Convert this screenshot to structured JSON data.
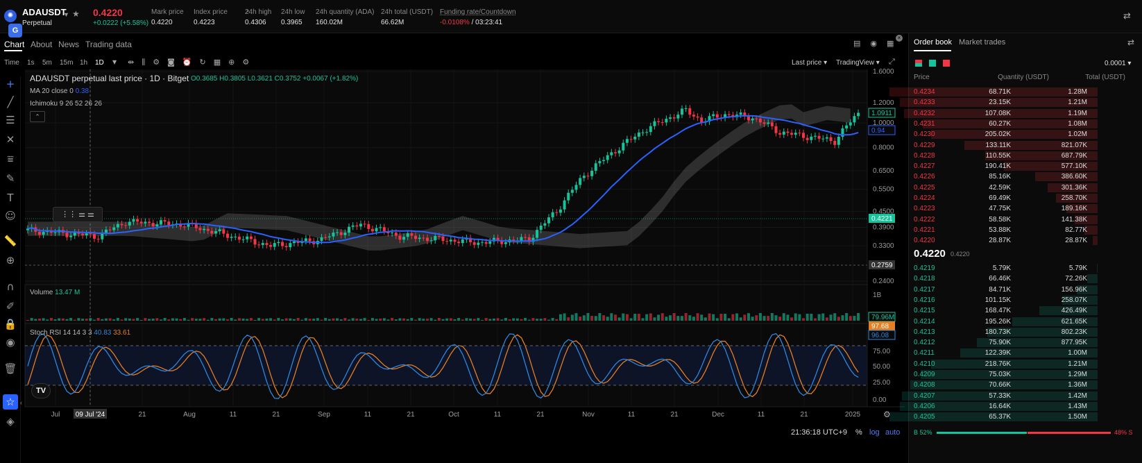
{
  "header": {
    "symbol": "ADAUSDT",
    "contract": "Perpetual",
    "last_price": "0.4220",
    "change": "+0.0222 (+5.58%)",
    "stats": [
      {
        "label": "Mark price",
        "value": "0.4220"
      },
      {
        "label": "Index price",
        "value": "0.4223"
      },
      {
        "label": "24h high",
        "value": "0.4306"
      },
      {
        "label": "24h low",
        "value": "0.3965"
      },
      {
        "label": "24h quantity (ADA)",
        "value": "160.02M"
      },
      {
        "label": "24h total (USDT)",
        "value": "66.62M"
      },
      {
        "label": "Funding rate/Countdown",
        "value": "-0.0108%",
        "value2": "/ 03:23:41"
      }
    ]
  },
  "chart_tabs": [
    "Chart",
    "About",
    "News",
    "Trading data"
  ],
  "timeframes": [
    "Time",
    "1s",
    "5m",
    "15m",
    "1h",
    "1D"
  ],
  "chart_controls": {
    "last_price": "Last price",
    "view": "TradingView"
  },
  "legend": {
    "title": "ADAUSDT perpetual last price · 1D · Bitget",
    "ohlc": "O0.3685  H0.3805  L0.3621  C0.3752  +0.0067 (+1.82%)",
    "ma": "MA 20 close 0",
    "ma_value": "0.38",
    "ichimoku": "Ichimoku 9 26 52 26 26",
    "volume": "Volume",
    "volume_value": "13.47 M",
    "stoch": "Stoch RSI 14 14 3 3",
    "stoch_k": "40.83",
    "stoch_d": "33.61"
  },
  "price_axis": {
    "ticks": [
      "1.6000",
      "1.2000",
      "1.0000",
      "0.8000",
      "0.6500",
      "0.5500",
      "0.4500",
      "0.3900",
      "0.3300",
      "0.2400"
    ],
    "tags": {
      "high": "1.0911",
      "ma": "0.94",
      "last": "0.4221",
      "low": "0.2759"
    }
  },
  "volume_axis": {
    "tick": "1B",
    "tag": "79.96M"
  },
  "stoch_axis": {
    "ticks": [
      "75.00",
      "50.00",
      "25.00",
      "0.00"
    ],
    "tag1": "97.68",
    "tag2": "96.08"
  },
  "time_axis": [
    "Jul",
    "09 Jul '24",
    "21",
    "Aug",
    "11",
    "21",
    "Sep",
    "11",
    "21",
    "Oct",
    "11",
    "21",
    "Nov",
    "11",
    "21",
    "Dec",
    "11",
    "21",
    "2025"
  ],
  "status_bar": {
    "clock": "21:36:18 UTC+9",
    "percent": "%",
    "log": "log",
    "auto": "auto"
  },
  "orderbook": {
    "tabs": [
      "Order book",
      "Market trades"
    ],
    "precision": "0.0001",
    "columns": [
      "Price",
      "Quantity (USDT)",
      "Total (USDT)"
    ],
    "asks": [
      {
        "p": "0.4234",
        "q": "68.71K",
        "t": "1.28M",
        "d": 1.0
      },
      {
        "p": "0.4233",
        "q": "23.15K",
        "t": "1.21M",
        "d": 0.95
      },
      {
        "p": "0.4232",
        "q": "107.08K",
        "t": "1.19M",
        "d": 0.93
      },
      {
        "p": "0.4231",
        "q": "60.27K",
        "t": "1.08M",
        "d": 0.84
      },
      {
        "p": "0.4230",
        "q": "205.02K",
        "t": "1.02M",
        "d": 0.8
      },
      {
        "p": "0.4229",
        "q": "133.11K",
        "t": "821.07K",
        "d": 0.64
      },
      {
        "p": "0.4228",
        "q": "110.55K",
        "t": "687.79K",
        "d": 0.54
      },
      {
        "p": "0.4227",
        "q": "190.41K",
        "t": "577.10K",
        "d": 0.45
      },
      {
        "p": "0.4226",
        "q": "85.16K",
        "t": "386.60K",
        "d": 0.3
      },
      {
        "p": "0.4225",
        "q": "42.59K",
        "t": "301.36K",
        "d": 0.24
      },
      {
        "p": "0.4224",
        "q": "69.49K",
        "t": "258.70K",
        "d": 0.2
      },
      {
        "p": "0.4223",
        "q": "47.75K",
        "t": "189.16K",
        "d": 0.15
      },
      {
        "p": "0.4222",
        "q": "58.58K",
        "t": "141.38K",
        "d": 0.11
      },
      {
        "p": "0.4221",
        "q": "53.88K",
        "t": "82.77K",
        "d": 0.065
      },
      {
        "p": "0.4220",
        "q": "28.87K",
        "t": "28.87K",
        "d": 0.023
      }
    ],
    "mid_price": "0.4220",
    "mid_mark": "0.4220",
    "bids": [
      {
        "p": "0.4219",
        "q": "5.79K",
        "t": "5.79K",
        "d": 0.004
      },
      {
        "p": "0.4218",
        "q": "66.46K",
        "t": "72.26K",
        "d": 0.05
      },
      {
        "p": "0.4217",
        "q": "84.71K",
        "t": "156.96K",
        "d": 0.1
      },
      {
        "p": "0.4216",
        "q": "101.15K",
        "t": "258.07K",
        "d": 0.17
      },
      {
        "p": "0.4215",
        "q": "168.47K",
        "t": "426.49K",
        "d": 0.28
      },
      {
        "p": "0.4214",
        "q": "195.26K",
        "t": "621.65K",
        "d": 0.41
      },
      {
        "p": "0.4213",
        "q": "180.73K",
        "t": "802.23K",
        "d": 0.53
      },
      {
        "p": "0.4212",
        "q": "75.90K",
        "t": "877.95K",
        "d": 0.58
      },
      {
        "p": "0.4211",
        "q": "122.39K",
        "t": "1.00M",
        "d": 0.66
      },
      {
        "p": "0.4210",
        "q": "218.76K",
        "t": "1.21M",
        "d": 0.8
      },
      {
        "p": "0.4209",
        "q": "75.03K",
        "t": "1.29M",
        "d": 0.85
      },
      {
        "p": "0.4208",
        "q": "70.66K",
        "t": "1.36M",
        "d": 0.9
      },
      {
        "p": "0.4207",
        "q": "57.33K",
        "t": "1.42M",
        "d": 0.94
      },
      {
        "p": "0.4206",
        "q": "16.64K",
        "t": "1.43M",
        "d": 0.95
      },
      {
        "p": "0.4205",
        "q": "65.37K",
        "t": "1.50M",
        "d": 1.0
      }
    ],
    "buy_ratio": "B 52%",
    "sell_ratio": "48% S",
    "buy_fraction": 0.52
  },
  "colors": {
    "up": "#17c39a",
    "down": "#f23645",
    "ma": "#2962ff",
    "stoch_k": "#2e86de",
    "stoch_d": "#e67e22"
  }
}
